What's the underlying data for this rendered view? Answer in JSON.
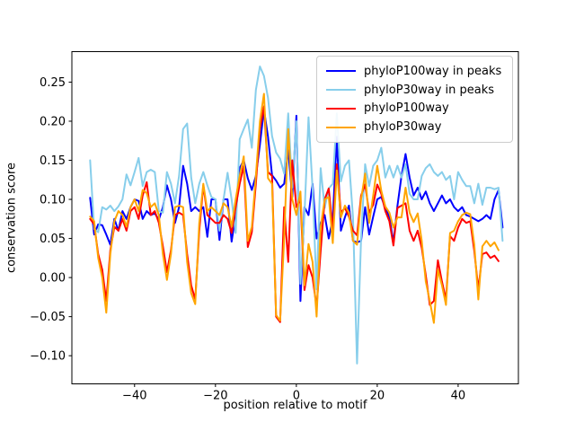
{
  "figure": {
    "background": "#ffffff"
  },
  "chart_data": {
    "type": "line",
    "title": "",
    "xlabel": "position relative to motif",
    "ylabel": "conservation score",
    "grid": false,
    "legend_position": "upper right",
    "xlim": [
      -55.5,
      54.9
    ],
    "ylim": [
      -0.136,
      0.289
    ],
    "x_tick_positions": [
      -40,
      -20,
      0,
      20,
      40
    ],
    "x_tick_labels": [
      "−40",
      "−20",
      "0",
      "20",
      "40"
    ],
    "y_tick_positions": [
      0.25,
      0.2,
      0.15,
      0.1,
      0.05,
      0.0,
      -0.05,
      -0.1
    ],
    "y_tick_labels": [
      "0.25",
      "0.20",
      "0.15",
      "0.10",
      "0.05",
      "0.00",
      "−0.05",
      "−0.10"
    ],
    "x": [
      -51,
      -50,
      -49,
      -48,
      -47,
      -46,
      -45,
      -44,
      -43,
      -42,
      -41,
      -40,
      -39,
      -38,
      -37,
      -36,
      -35,
      -34,
      -33,
      -32,
      -31,
      -30,
      -29,
      -28,
      -27,
      -26,
      -25,
      -24,
      -23,
      -22,
      -21,
      -20,
      -19,
      -18,
      -17,
      -16,
      -15,
      -14,
      -13,
      -12,
      -11,
      -10,
      -9,
      -8,
      -7,
      -6,
      -5,
      -4,
      -3,
      -2,
      -1,
      0,
      1,
      2,
      3,
      4,
      5,
      6,
      7,
      8,
      9,
      10,
      11,
      12,
      13,
      14,
      15,
      16,
      17,
      18,
      19,
      20,
      21,
      22,
      23,
      24,
      25,
      26,
      27,
      28,
      29,
      30,
      31,
      32,
      33,
      34,
      35,
      36,
      37,
      38,
      39,
      40,
      41,
      42,
      43,
      44,
      45,
      46,
      47,
      48,
      49,
      50,
      51
    ],
    "series": [
      {
        "name": "phyloP100way in peaks",
        "color": "#0000ff",
        "values": [
          0.102,
          0.055,
          0.068,
          0.067,
          0.055,
          0.042,
          0.075,
          0.06,
          0.085,
          0.075,
          0.09,
          0.1,
          0.098,
          0.075,
          0.085,
          0.08,
          0.082,
          0.074,
          0.09,
          0.118,
          0.1,
          0.07,
          0.09,
          0.143,
          0.12,
          0.085,
          0.09,
          0.085,
          0.09,
          0.052,
          0.1,
          0.1,
          0.048,
          0.1,
          0.1,
          0.046,
          0.08,
          0.14,
          0.15,
          0.127,
          0.112,
          0.13,
          0.17,
          0.215,
          0.18,
          0.131,
          0.124,
          0.115,
          0.12,
          0.163,
          0.103,
          0.207,
          -0.03,
          0.09,
          0.08,
          0.12,
          0.05,
          0.07,
          0.08,
          0.05,
          0.075,
          0.18,
          0.06,
          0.077,
          0.092,
          0.047,
          0.045,
          0.047,
          0.09,
          0.055,
          0.078,
          0.1,
          0.103,
          0.089,
          0.077,
          0.045,
          0.092,
          0.13,
          0.158,
          0.128,
          0.105,
          0.115,
          0.1,
          0.11,
          0.095,
          0.085,
          0.095,
          0.105,
          0.095,
          0.1,
          0.09,
          0.085,
          0.09,
          0.08,
          0.078,
          0.075,
          0.072,
          0.075,
          0.08,
          0.075,
          0.1,
          0.112,
          0.064
        ]
      },
      {
        "name": "phyloP30way in peaks",
        "color": "#87ceeb",
        "values": [
          0.15,
          0.062,
          0.058,
          0.09,
          0.087,
          0.092,
          0.085,
          0.091,
          0.1,
          0.132,
          0.118,
          0.135,
          0.153,
          0.117,
          0.135,
          0.138,
          0.135,
          0.085,
          0.083,
          0.135,
          0.12,
          0.095,
          0.13,
          0.19,
          0.197,
          0.128,
          0.095,
          0.12,
          0.135,
          0.118,
          0.103,
          0.1,
          0.06,
          0.1,
          0.134,
          0.1,
          0.057,
          0.177,
          0.19,
          0.202,
          0.166,
          0.24,
          0.27,
          0.258,
          0.23,
          0.181,
          0.16,
          0.152,
          0.133,
          0.21,
          0.115,
          0.2,
          -0.008,
          0.08,
          0.205,
          0.114,
          -0.015,
          0.14,
          0.089,
          0.114,
          0.12,
          0.21,
          0.123,
          0.143,
          0.15,
          0.077,
          -0.11,
          0.05,
          0.145,
          0.117,
          0.143,
          0.15,
          0.166,
          0.128,
          0.143,
          0.128,
          0.143,
          0.128,
          0.145,
          0.107,
          0.1,
          0.1,
          0.13,
          0.14,
          0.145,
          0.135,
          0.13,
          0.135,
          0.125,
          0.13,
          0.1,
          0.135,
          0.125,
          0.117,
          0.117,
          0.095,
          0.12,
          0.093,
          0.115,
          0.115,
          0.113,
          0.115,
          0.047
        ]
      },
      {
        "name": "phyloP100way",
        "color": "#ff0000",
        "values": [
          0.075,
          0.068,
          0.03,
          0.01,
          -0.03,
          0.035,
          0.065,
          0.06,
          0.075,
          0.06,
          0.085,
          0.09,
          0.075,
          0.105,
          0.122,
          0.08,
          0.085,
          0.07,
          0.04,
          0.007,
          0.035,
          0.08,
          0.083,
          0.08,
          0.03,
          -0.01,
          -0.028,
          0.06,
          0.118,
          0.08,
          0.075,
          0.07,
          0.07,
          0.08,
          0.075,
          0.057,
          0.09,
          0.12,
          0.143,
          0.039,
          0.058,
          0.12,
          0.19,
          0.219,
          0.135,
          0.13,
          -0.05,
          -0.057,
          0.09,
          0.02,
          0.15,
          0.09,
          0.1,
          -0.016,
          0.016,
          0.0,
          -0.038,
          0.034,
          0.1,
          0.114,
          0.06,
          0.145,
          0.083,
          0.089,
          0.078,
          0.06,
          0.054,
          0.105,
          0.119,
          0.083,
          0.093,
          0.119,
          0.107,
          0.085,
          0.072,
          0.041,
          0.089,
          0.092,
          0.095,
          0.06,
          0.047,
          0.06,
          0.038,
          0.003,
          -0.035,
          -0.03,
          0.022,
          -0.005,
          -0.028,
          0.053,
          0.047,
          0.064,
          0.075,
          0.07,
          0.072,
          0.034,
          -0.015,
          0.03,
          0.032,
          0.025,
          0.028,
          0.021,
          null
        ]
      },
      {
        "name": "phyloP30way",
        "color": "#ffa500",
        "values": [
          0.078,
          0.072,
          0.025,
          0.0,
          -0.045,
          0.03,
          0.072,
          0.085,
          0.08,
          0.065,
          0.09,
          0.1,
          0.085,
          0.112,
          0.108,
          0.09,
          0.095,
          0.08,
          0.03,
          -0.003,
          0.03,
          0.09,
          0.092,
          0.09,
          0.02,
          -0.02,
          -0.034,
          0.07,
          0.12,
          0.085,
          0.09,
          0.085,
          0.08,
          0.095,
          0.09,
          0.065,
          0.1,
          0.13,
          0.155,
          0.047,
          0.065,
          0.13,
          0.2,
          0.235,
          0.127,
          0.12,
          -0.048,
          -0.055,
          0.05,
          0.19,
          0.1,
          0.08,
          0.11,
          -0.01,
          0.043,
          0.02,
          -0.05,
          0.065,
          0.1,
          0.103,
          0.044,
          0.137,
          0.077,
          0.092,
          0.083,
          0.047,
          0.042,
          0.1,
          0.133,
          0.07,
          0.105,
          0.143,
          0.111,
          0.091,
          0.083,
          0.064,
          0.077,
          0.077,
          0.115,
          0.083,
          0.071,
          0.082,
          0.047,
          -0.005,
          -0.03,
          -0.058,
          0.01,
          -0.01,
          -0.035,
          0.057,
          0.06,
          0.072,
          0.08,
          0.083,
          0.081,
          0.042,
          -0.028,
          0.04,
          0.047,
          0.04,
          0.045,
          0.035,
          null
        ]
      }
    ]
  }
}
